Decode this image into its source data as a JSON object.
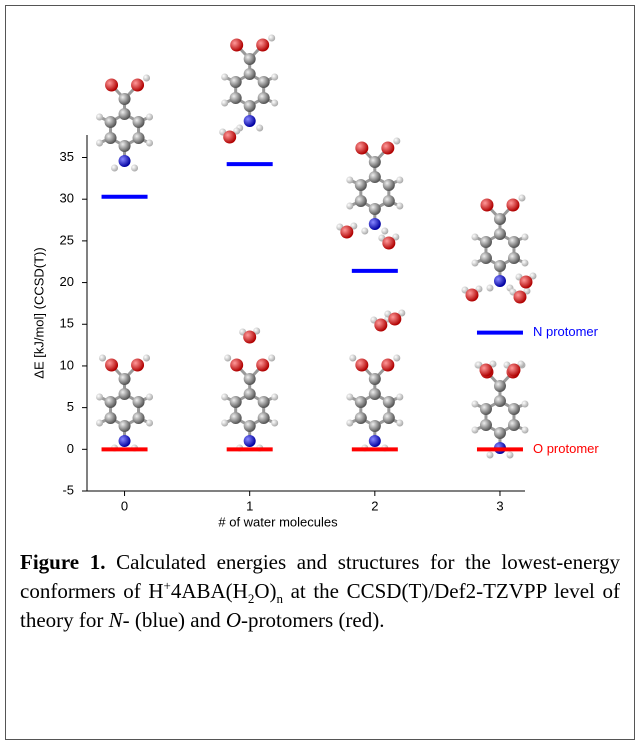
{
  "chart_data": {
    "type": "level",
    "x": [
      0,
      1,
      2,
      3
    ],
    "xlim": [
      -0.3,
      3.2
    ],
    "xticks": [
      0,
      1,
      2,
      3
    ],
    "xlabel": "# of water molecules",
    "ylabel": "ΔE [kJ/mol] (CCSD(T))",
    "ylim": [
      -5,
      37.7
    ],
    "yticks": [
      -5,
      0,
      5,
      10,
      15,
      20,
      25,
      30,
      35
    ],
    "series": [
      {
        "name": "N protomer",
        "color": "#0000ff",
        "values": [
          30.3,
          34.2,
          21.4,
          14.0
        ]
      },
      {
        "name": "O protomer",
        "color": "#ff0000",
        "values": [
          0,
          0,
          0,
          0
        ]
      }
    ]
  },
  "caption": {
    "label": "Figure 1.",
    "text": [
      "Calculated energies and structures for the lowest-energy conformers of H",
      "+",
      "4ABA(H",
      "2",
      "O)",
      "n",
      " at the CCSD(T)/Def2-TZVPP level of theory for ",
      "N",
      "- (blue) and ",
      "O",
      "-protomers (red)."
    ]
  }
}
